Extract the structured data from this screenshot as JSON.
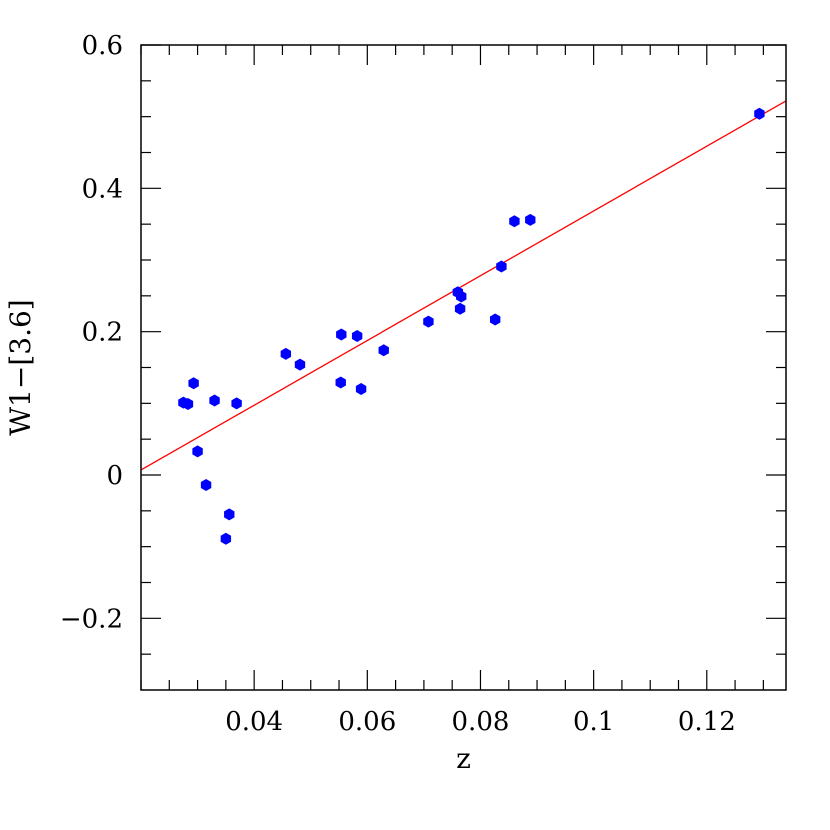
{
  "chart_data": {
    "type": "scatter",
    "title": "",
    "xlabel": "z",
    "ylabel": "W1−[3.6]",
    "xlim": [
      0.02,
      0.134
    ],
    "ylim": [
      -0.3,
      0.6
    ],
    "x_ticks": [
      {
        "value": 0.04,
        "label": "0.04"
      },
      {
        "value": 0.06,
        "label": "0.06"
      },
      {
        "value": 0.08,
        "label": "0.08"
      },
      {
        "value": 0.1,
        "label": "0.1"
      },
      {
        "value": 0.12,
        "label": "0.12"
      }
    ],
    "x_minor_step": 0.005,
    "y_ticks": [
      {
        "value": -0.2,
        "label": "−0.2"
      },
      {
        "value": 0,
        "label": "0"
      },
      {
        "value": 0.2,
        "label": "0.2"
      },
      {
        "value": 0.4,
        "label": "0.4"
      },
      {
        "value": 0.6,
        "label": "0.6"
      }
    ],
    "y_minor_step": 0.05,
    "grid": false,
    "colors": {
      "points": "#0000ff",
      "fit_line": "#ff0000",
      "axes": "#000000"
    },
    "points": [
      {
        "x": 0.0275,
        "y": 0.101
      },
      {
        "x": 0.0283,
        "y": 0.099
      },
      {
        "x": 0.0293,
        "y": 0.128
      },
      {
        "x": 0.03,
        "y": 0.033
      },
      {
        "x": 0.0315,
        "y": -0.014
      },
      {
        "x": 0.033,
        "y": 0.104
      },
      {
        "x": 0.035,
        "y": -0.089
      },
      {
        "x": 0.0356,
        "y": -0.055
      },
      {
        "x": 0.0369,
        "y": 0.1
      },
      {
        "x": 0.0456,
        "y": 0.169
      },
      {
        "x": 0.0481,
        "y": 0.154
      },
      {
        "x": 0.0554,
        "y": 0.196
      },
      {
        "x": 0.0553,
        "y": 0.129
      },
      {
        "x": 0.0582,
        "y": 0.194
      },
      {
        "x": 0.0589,
        "y": 0.12
      },
      {
        "x": 0.0629,
        "y": 0.174
      },
      {
        "x": 0.0708,
        "y": 0.214
      },
      {
        "x": 0.076,
        "y": 0.255
      },
      {
        "x": 0.0764,
        "y": 0.232
      },
      {
        "x": 0.0766,
        "y": 0.249
      },
      {
        "x": 0.0826,
        "y": 0.217
      },
      {
        "x": 0.0837,
        "y": 0.291
      },
      {
        "x": 0.086,
        "y": 0.354
      },
      {
        "x": 0.0888,
        "y": 0.356
      },
      {
        "x": 0.1293,
        "y": 0.504
      }
    ],
    "fit_line": {
      "x": [
        0.02,
        0.134
      ],
      "y": [
        0.007,
        0.522
      ]
    }
  }
}
